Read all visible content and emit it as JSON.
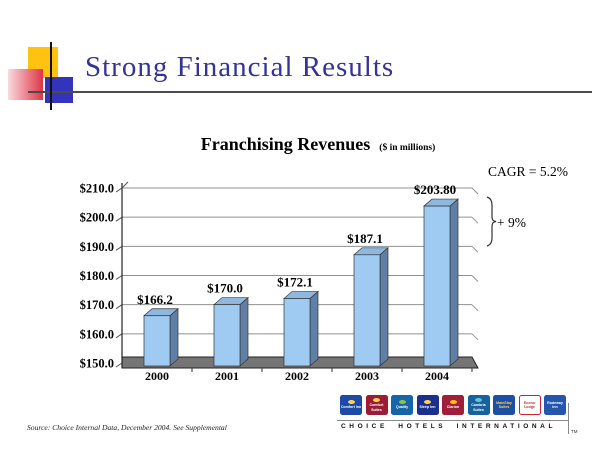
{
  "slide": {
    "title": "Strong Financial Results",
    "source_note": "Source: Choice Internal Data, December 2004.  See Supplemental"
  },
  "chart_data": {
    "type": "bar",
    "title": "Franchising Revenues",
    "subtitle": "($ in millions)",
    "categories": [
      "2000",
      "2001",
      "2002",
      "2003",
      "2004"
    ],
    "values": [
      166.2,
      170.0,
      172.1,
      187.1,
      203.8
    ],
    "value_labels": [
      "$166.2",
      "$170.0",
      "$172.1",
      "$187.1",
      "$203.80"
    ],
    "y_ticks": [
      "$210.0",
      "$200.0",
      "$190.0",
      "$180.0",
      "$170.0",
      "$160.0",
      "$150.0"
    ],
    "ylim": [
      150,
      210
    ],
    "grid": true,
    "legend": "none",
    "bar_color": "#9FCBF2",
    "bar_top_color": "#8FB8E0",
    "bar_side_color": "#5F7FA6",
    "floor_color": "#757575",
    "annotations": {
      "cagr": "CAGR = 5.2%",
      "growth": "+ 9%"
    }
  },
  "footer": {
    "brand_text": "CHOICE HOTELS INTERNATIONAL",
    "trademark": "TM",
    "logos": [
      {
        "name": "comfort-inn",
        "label": "Comfort Inn",
        "bg": "#1B4AAB",
        "fg": "#ffffff",
        "accent": "#FFD34D"
      },
      {
        "name": "comfort-suites",
        "label": "Comfort Suites",
        "bg": "#9C1B35",
        "fg": "#ffffff",
        "accent": "#FFD34D"
      },
      {
        "name": "quality",
        "label": "Quality",
        "bg": "#1565A8",
        "fg": "#ffffff",
        "accent": "#8DC63F"
      },
      {
        "name": "sleep-inn",
        "label": "Sleep Inn",
        "bg": "#1A2F8F",
        "fg": "#ffffff",
        "accent": "#FFD34D"
      },
      {
        "name": "clarion",
        "label": "Clarion",
        "bg": "#A01E38",
        "fg": "#ffffff",
        "accent": "#FFC20E"
      },
      {
        "name": "cambria-suites",
        "label": "Cambria Suites",
        "bg": "#16629E",
        "fg": "#ffffff",
        "accent": "#66C2D9"
      },
      {
        "name": "mainstay-suites",
        "label": "MainStay Suites",
        "bg": "#1D4FA5",
        "fg": "#FFD34D"
      },
      {
        "name": "econo-lodge",
        "label": "Econo Lodge",
        "bg": "#ffffff",
        "fg": "#D2232A",
        "border": "#D2232A"
      },
      {
        "name": "rodeway-inn",
        "label": "Rodeway Inn",
        "bg": "#2456B0",
        "fg": "#ffffff"
      }
    ]
  }
}
